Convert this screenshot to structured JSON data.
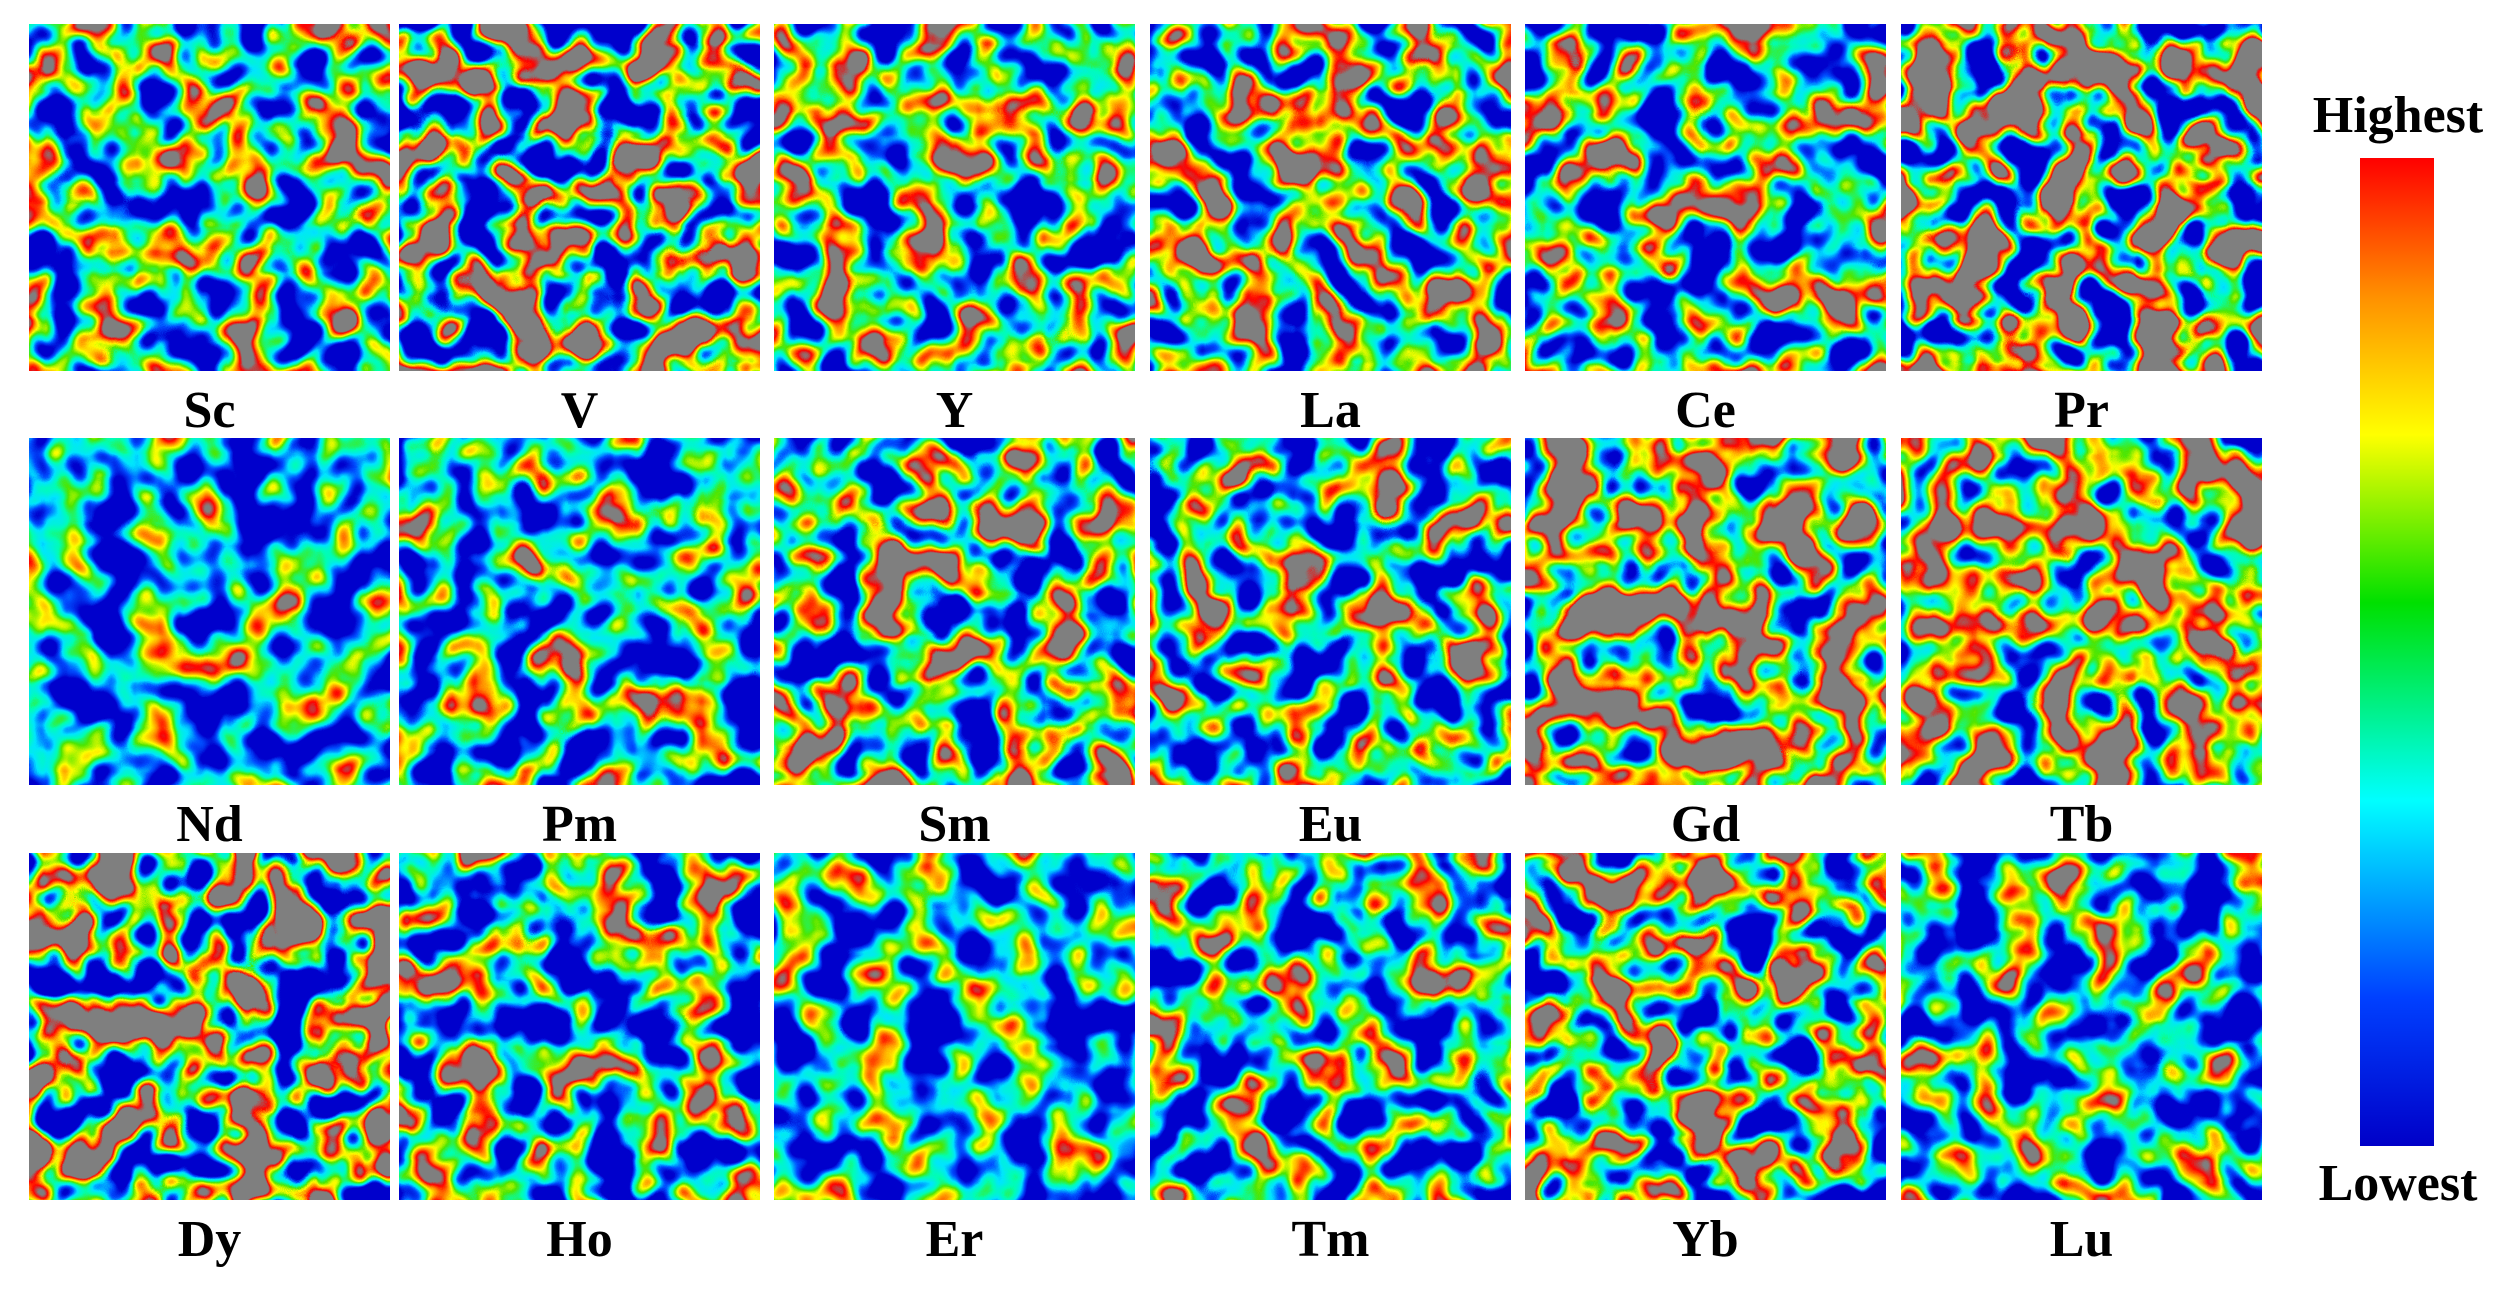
{
  "panels": [
    {
      "label": "Sc"
    },
    {
      "label": "V"
    },
    {
      "label": "Y"
    },
    {
      "label": "La"
    },
    {
      "label": "Ce"
    },
    {
      "label": "Pr"
    },
    {
      "label": "Nd"
    },
    {
      "label": "Pm"
    },
    {
      "label": "Sm"
    },
    {
      "label": "Eu"
    },
    {
      "label": "Gd"
    },
    {
      "label": "Tb"
    },
    {
      "label": "Dy"
    },
    {
      "label": "Ho"
    },
    {
      "label": "Er"
    },
    {
      "label": "Tm"
    },
    {
      "label": "Yb"
    },
    {
      "label": "Lu"
    }
  ],
  "colorbar": {
    "max_label": "Highest",
    "min_label": "Lowest"
  }
}
